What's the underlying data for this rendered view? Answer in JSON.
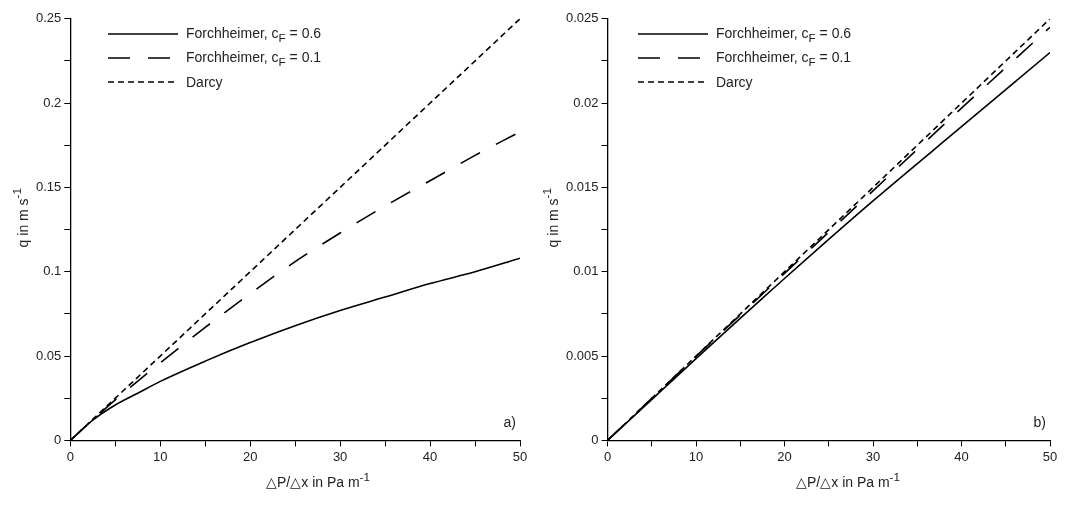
{
  "chart_data": [
    {
      "type": "line",
      "xlabel": "△P/△x in Pa m$^{-1}$",
      "ylabel": "q in m s$^{-1}$",
      "xlim": [
        0,
        50
      ],
      "ylim": [
        0,
        0.25
      ],
      "xticks": [
        0,
        {
          "value": 5,
          "label": null
        },
        10,
        {
          "value": 15,
          "label": null
        },
        20,
        {
          "value": 25,
          "label": null
        },
        30,
        {
          "value": 35,
          "label": null
        },
        40,
        {
          "value": 45,
          "label": null
        },
        50
      ],
      "yticks": [
        0,
        {
          "value": 0.025,
          "label": null
        },
        0.05,
        {
          "value": 0.075,
          "label": null
        },
        0.1,
        {
          "value": 0.125,
          "label": null
        },
        0.15,
        {
          "value": 0.175,
          "label": null
        },
        0.2,
        {
          "value": 0.225,
          "label": null
        },
        0.25
      ],
      "legend": "top left",
      "grid": false,
      "marker": "none",
      "annotations": [
        "a)"
      ],
      "series": [
        {
          "name": "Forchheimer, c$_{F}$ = 0.6",
          "color": "#000000",
          "line_style": "solid",
          "x": [
            0,
            2.5,
            5,
            7.5,
            10,
            15,
            20,
            25,
            30,
            35,
            40,
            45,
            50
          ],
          "values": [
            0,
            0.012,
            0.021,
            0.028,
            0.035,
            0.047,
            0.058,
            0.068,
            0.077,
            0.085,
            0.093,
            0.1,
            0.108
          ]
        },
        {
          "name": "Forchheimer, c$_{F}$ = 0.1",
          "color": "#000000",
          "line_style": "dashed",
          "x": [
            0,
            5,
            10,
            15,
            20,
            25,
            30,
            35,
            40,
            45,
            50
          ],
          "values": [
            0,
            0.024,
            0.046,
            0.067,
            0.087,
            0.106,
            0.123,
            0.139,
            0.154,
            0.169,
            0.183
          ]
        },
        {
          "name": "Darcy",
          "color": "#000000",
          "line_style": "dotted",
          "x": [
            0,
            50
          ],
          "values": [
            0,
            0.25
          ]
        }
      ]
    },
    {
      "type": "line",
      "xlabel": "△P/△x in Pa m$^{-1}$",
      "ylabel": "q in m s$^{-1}$",
      "xlim": [
        0,
        50
      ],
      "ylim": [
        0,
        0.025
      ],
      "xticks": [
        0,
        {
          "value": 5,
          "label": null
        },
        10,
        {
          "value": 15,
          "label": null
        },
        20,
        {
          "value": 25,
          "label": null
        },
        30,
        {
          "value": 35,
          "label": null
        },
        40,
        {
          "value": 45,
          "label": null
        },
        50
      ],
      "yticks": [
        0,
        {
          "value": 0.0025,
          "label": null
        },
        0.005,
        {
          "value": 0.0075,
          "label": null
        },
        0.01,
        {
          "value": 0.0125,
          "label": null
        },
        0.015,
        {
          "value": 0.0175,
          "label": null
        },
        0.02,
        {
          "value": 0.0225,
          "label": null
        },
        0.025
      ],
      "legend": "top left",
      "grid": false,
      "marker": "none",
      "annotations": [
        "b)"
      ],
      "series": [
        {
          "name": "Forchheimer, c$_{F}$ = 0.6",
          "color": "#000000",
          "line_style": "solid",
          "x": [
            0,
            10,
            20,
            30,
            40,
            50
          ],
          "values": [
            0,
            0.00485,
            0.0096,
            0.0142,
            0.0186,
            0.023
          ]
        },
        {
          "name": "Forchheimer, c$_{F}$ = 0.1",
          "color": "#000000",
          "line_style": "dashed",
          "x": [
            0,
            10,
            20,
            30,
            40,
            50
          ],
          "values": [
            0,
            0.00498,
            0.0099,
            0.0148,
            0.0197,
            0.0245
          ]
        },
        {
          "name": "Darcy",
          "color": "#000000",
          "line_style": "dotted",
          "x": [
            0,
            50
          ],
          "values": [
            0,
            0.025
          ]
        }
      ]
    }
  ]
}
